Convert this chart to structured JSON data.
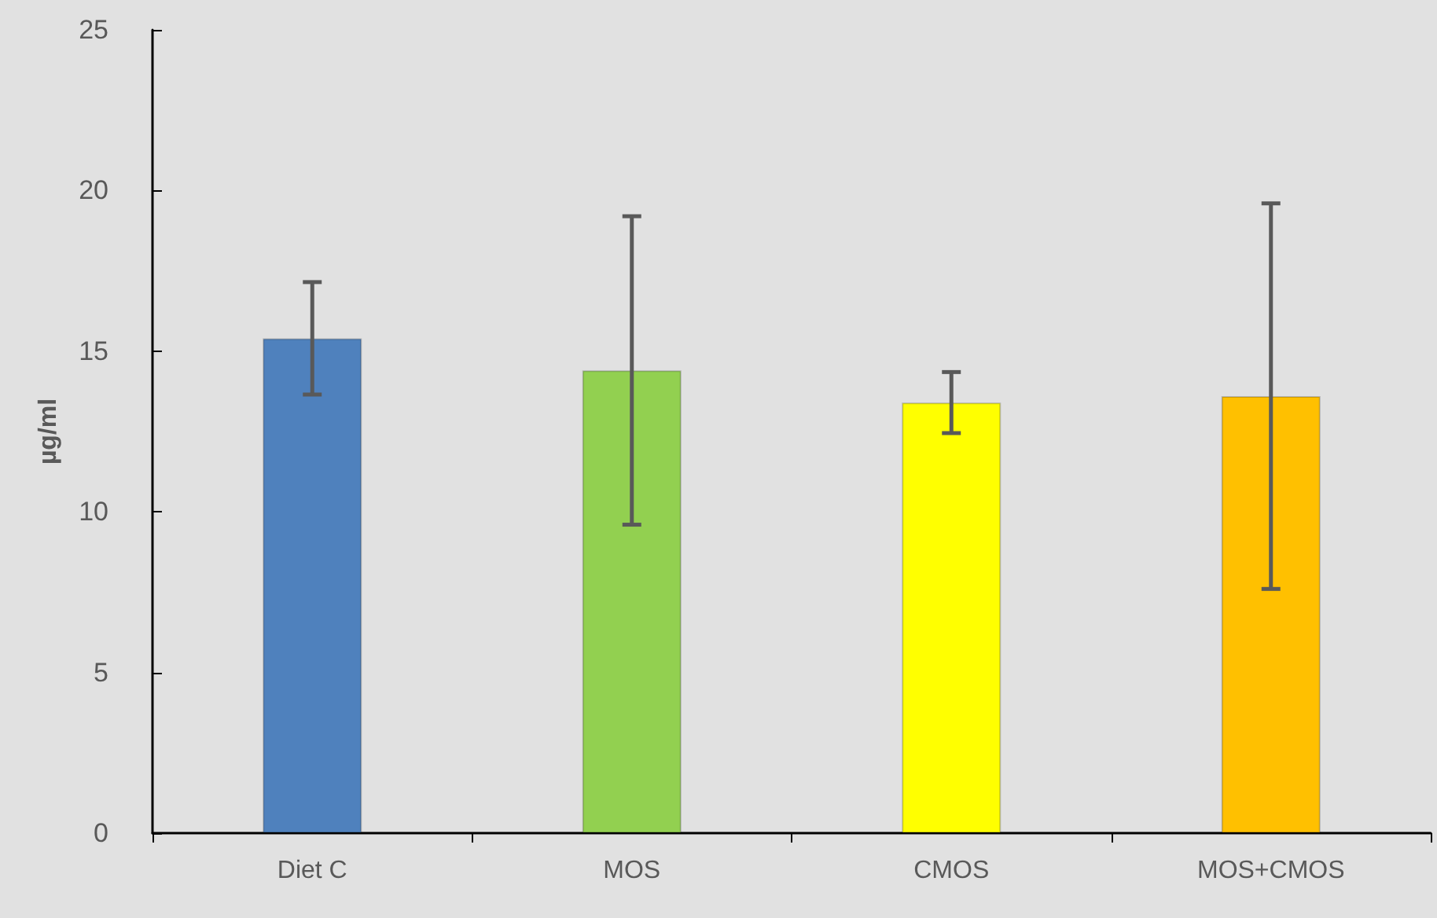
{
  "chart_data": {
    "type": "bar",
    "ylabel": "µg/ml",
    "categories": [
      "Diet C",
      "MOS",
      "CMOS",
      "MOS+CMOS"
    ],
    "values": [
      15.4,
      14.4,
      13.4,
      13.6
    ],
    "colors": [
      "#4f81bd",
      "#92d050",
      "#ffff00",
      "#ffc000"
    ],
    "errors": [
      1.75,
      4.8,
      0.95,
      6.0
    ],
    "ylim": [
      0,
      25
    ],
    "yticks": [
      0,
      5,
      10,
      15,
      20,
      25
    ],
    "grid": false
  }
}
